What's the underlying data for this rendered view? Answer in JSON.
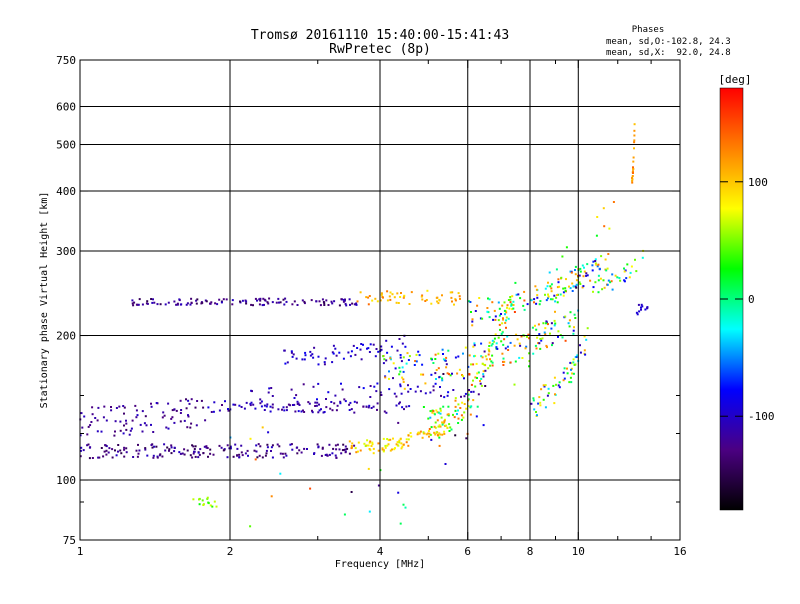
{
  "chart_data": {
    "type": "scatter",
    "title": "Tromsø 20161110 15:40:00-15:41:43",
    "subtitle": "RwPretec (8p)",
    "xlabel": "Frequency [MHz]",
    "ylabel": "Stationary phase Virtual Height [km]",
    "x_scale": "log",
    "y_scale": "log",
    "xlim": [
      1,
      16
    ],
    "ylim": [
      75,
      750
    ],
    "x_ticks": [
      1,
      2,
      4,
      6,
      8,
      10,
      16
    ],
    "y_ticks": [
      75,
      100,
      200,
      300,
      400,
      500,
      600,
      750
    ],
    "grid": true,
    "phases": {
      "heading": "Phases",
      "line_o": "mean, sd,O:-102.8, 24.3",
      "line_x": "mean, sd,X:  92.0, 24.8"
    },
    "colorbar": {
      "label": "[deg]",
      "range": [
        -180,
        180
      ],
      "ticks": [
        -100,
        0,
        100
      ],
      "colors": [
        "#000000",
        "#4b0082",
        "#0000ff",
        "#00ffff",
        "#00ff00",
        "#ffff00",
        "#ff8000",
        "#ff0000"
      ]
    },
    "traces": [
      {
        "x_range": [
          1.0,
          3.6
        ],
        "y": 115,
        "y_jitter": 4,
        "phase": [
          -150,
          -100
        ],
        "count": 190
      },
      {
        "x_range": [
          3.5,
          5.5
        ],
        "y_range": [
          117,
          130
        ],
        "y_jitter": 4,
        "phase": [
          60,
          130
        ],
        "count": 100
      },
      {
        "x_range": [
          5.0,
          7.5
        ],
        "y_range": [
          130,
          250
        ],
        "y_jitter": 10,
        "phase": [
          -40,
          150
        ],
        "count": 110
      },
      {
        "x_range": [
          1.0,
          1.8
        ],
        "y_range": [
          133,
          140
        ],
        "y_jitter": 10,
        "phase": [
          -140,
          -100
        ],
        "count": 90
      },
      {
        "x_range": [
          1.8,
          4.6
        ],
        "y": 142,
        "y_jitter": 4,
        "phase": [
          -130,
          -90
        ],
        "count": 100
      },
      {
        "x_range": [
          2.2,
          6.5
        ],
        "y": 153,
        "y_jitter": 6,
        "phase": [
          -130,
          -80
        ],
        "count": 60
      },
      {
        "x_range": [
          1.25,
          3.6
        ],
        "y": 235,
        "y_jitter": 4,
        "phase": [
          -150,
          -100
        ],
        "count": 120
      },
      {
        "x_range": [
          3.6,
          5.8
        ],
        "y": 240,
        "y_jitter": 8,
        "phase": [
          80,
          140
        ],
        "count": 55
      },
      {
        "x_range": [
          2.5,
          4.6
        ],
        "y_range": [
          180,
          195
        ],
        "y_jitter": 8,
        "phase": [
          -120,
          -80
        ],
        "count": 60
      },
      {
        "x_range": [
          4.0,
          10.0
        ],
        "y_range": [
          170,
          215
        ],
        "y_jitter": 14,
        "phase": [
          -120,
          150
        ],
        "count": 180
      },
      {
        "x_range": [
          6.0,
          11.5
        ],
        "y_range": [
          225,
          290
        ],
        "y_jitter": 15,
        "phase": [
          -100,
          140
        ],
        "count": 140
      },
      {
        "x_range": [
          8.0,
          10.5
        ],
        "y_range": [
          145,
          200
        ],
        "y_jitter": 10,
        "phase": [
          -120,
          120
        ],
        "count": 60
      },
      {
        "x_range": [
          10.5,
          13.5
        ],
        "y_range": [
          255,
          290
        ],
        "y_jitter": 12,
        "phase": [
          -80,
          140
        ],
        "count": 35
      },
      {
        "x_range": [
          13.0,
          14.0
        ],
        "y_range": [
          225,
          240
        ],
        "y_jitter": 6,
        "phase": [
          -110,
          -90
        ],
        "count": 12
      },
      {
        "x_range": [
          12.8,
          13.0
        ],
        "y_range": [
          420,
          600
        ],
        "y_jitter": 8,
        "phase": [
          100,
          140
        ],
        "count": 20
      },
      {
        "x_range": [
          1.65,
          1.9
        ],
        "y": 90,
        "y_jitter": 2,
        "phase": [
          20,
          70
        ],
        "count": 15
      },
      {
        "x_range": [
          2.0,
          12.0
        ],
        "y_range": [
          90,
          380
        ],
        "y_jitter": 40,
        "phase": [
          -160,
          160
        ],
        "count": 80
      }
    ]
  }
}
